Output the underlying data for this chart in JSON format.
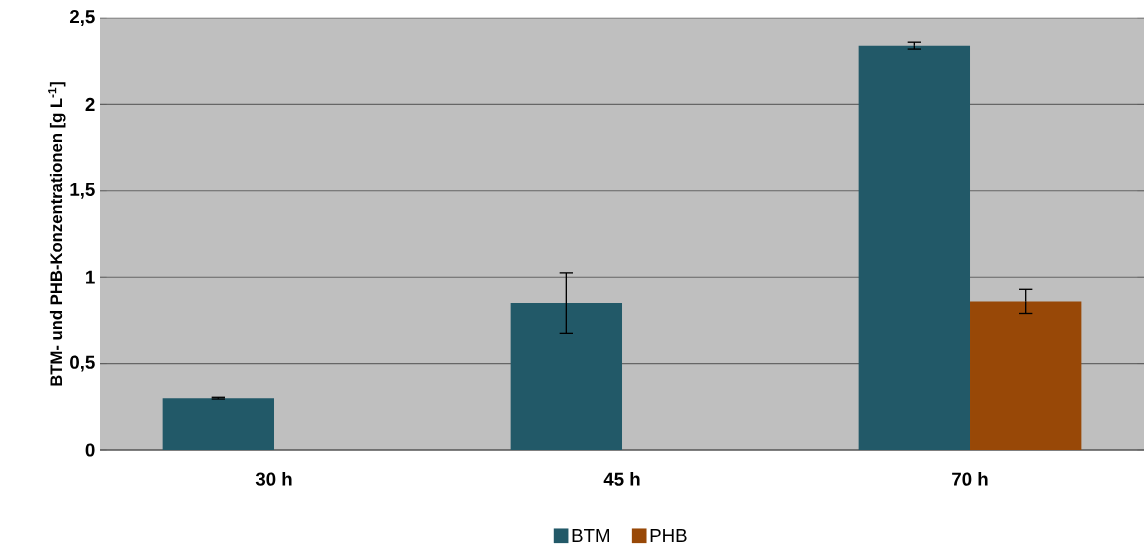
{
  "chart_data": {
    "type": "bar",
    "ylabel": "BTM- und PHB-Konzentrationen [g L$^{-1}$]",
    "categories": [
      "30 h",
      "45 h",
      "70 h"
    ],
    "series": [
      {
        "name": "BTM",
        "color": "#225968",
        "values": [
          0.3,
          0.85,
          2.34
        ],
        "errors": [
          0.005,
          0.175,
          0.02
        ]
      },
      {
        "name": "PHB",
        "color": "#984807",
        "values": [
          null,
          null,
          0.86
        ],
        "errors": [
          null,
          null,
          0.07
        ]
      }
    ],
    "ylim": [
      0,
      2.5
    ],
    "yticks": [
      0,
      {
        "value": 0.5,
        "label": "0,5"
      },
      1,
      {
        "value": 1.5,
        "label": "1,5"
      },
      2,
      {
        "value": 2.5,
        "label": "2,5"
      }
    ],
    "grid": "y",
    "legend": "bottom"
  }
}
